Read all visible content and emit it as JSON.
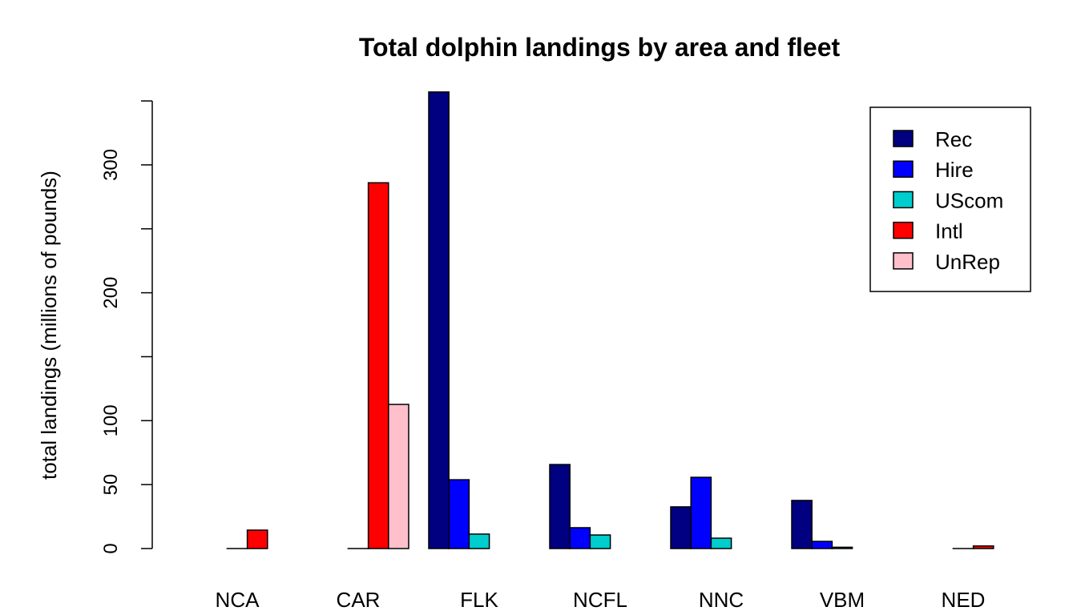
{
  "chart_data": {
    "type": "bar",
    "title": "Total dolphin landings by area and fleet",
    "xlabel": "",
    "ylabel": "total landings (millions of pounds)",
    "ylim": [
      0,
      350
    ],
    "yticks": [
      0,
      50,
      100,
      150,
      200,
      250,
      300,
      350
    ],
    "ytick_labels": [
      "0",
      "50",
      "100",
      "",
      "200",
      "",
      "300",
      ""
    ],
    "categories": [
      "NCA",
      "CAR",
      "FLK",
      "NCFL",
      "NNC",
      "VBM",
      "NED"
    ],
    "legend_position": "top-right",
    "series": [
      {
        "name": "Rec",
        "color": "#000080",
        "values": [
          null,
          null,
          357,
          65.7,
          32.6,
          37.6,
          null
        ]
      },
      {
        "name": "Hire",
        "color": "#0000FF",
        "values": [
          null,
          null,
          53.8,
          16.3,
          55.7,
          5.6,
          null
        ]
      },
      {
        "name": "UScom",
        "color": "#00CDCD",
        "values": [
          0,
          0,
          11.3,
          10.6,
          8.1,
          1,
          0
        ]
      },
      {
        "name": "Intl",
        "color": "#FF0000",
        "values": [
          14.4,
          286,
          null,
          null,
          null,
          null,
          2
        ]
      },
      {
        "name": "UnRep",
        "color": "#FFC0CB",
        "values": [
          null,
          112.7,
          null,
          null,
          null,
          null,
          null
        ]
      }
    ]
  }
}
